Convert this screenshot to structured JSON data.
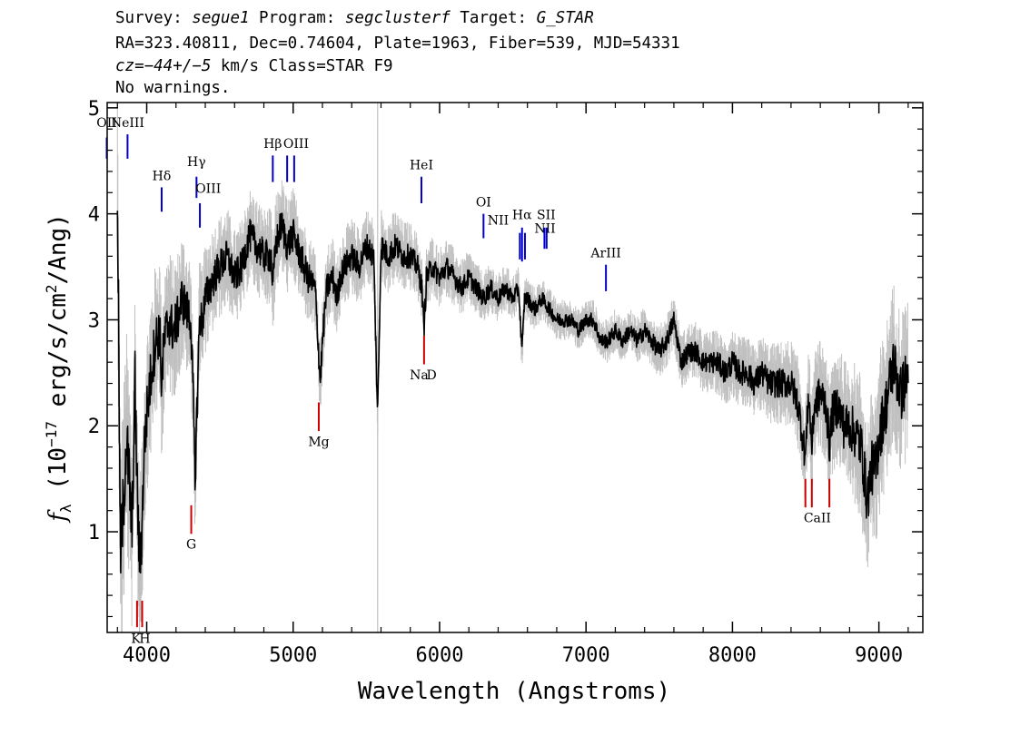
{
  "header": {
    "line1": [
      {
        "text": "Survey: ",
        "italic": false
      },
      {
        "text": "segue1",
        "italic": true
      },
      {
        "text": " Program: ",
        "italic": false
      },
      {
        "text": "segclusterf",
        "italic": true
      },
      {
        "text": " Target: ",
        "italic": false
      },
      {
        "text": "G_STAR",
        "italic": true
      }
    ],
    "line2": "RA=323.40811, Dec=0.74604, Plate=1963, Fiber=539, MJD=54331",
    "line3": [
      {
        "text": "cz=−44+/−5",
        "italic": true
      },
      {
        "text": " km/s Class=STAR F9",
        "italic": false
      }
    ],
    "line4": "No warnings."
  },
  "chart_data": {
    "type": "line",
    "title": "",
    "xlabel": "Wavelength (Angstroms)",
    "ylabel": "f_λ (10^-17 erg/s/cm^2/Ang)",
    "ylabel_parts": {
      "f": "f",
      "sub": "λ",
      "a": " (10",
      "sup1": "−17",
      "b": " erg/s/cm",
      "sup2": "2",
      "c": "/Ang)"
    },
    "xlim": [
      3730,
      9300
    ],
    "ylim": [
      0.05,
      5.05
    ],
    "xticks": [
      4000,
      5000,
      6000,
      7000,
      8000,
      9000
    ],
    "yticks": [
      1,
      2,
      3,
      4,
      5
    ],
    "grid": false,
    "colors": {
      "flux": "#000000",
      "noise_band": "#c0c0c0",
      "emission_marker": "#0000cc",
      "absorption_marker": "#cc0000",
      "sky_line": "#c0c0c0"
    },
    "sky_line_x": 5577,
    "series": [
      {
        "role": "flux",
        "x": [
          3800,
          3820,
          3840,
          3860,
          3880,
          3900,
          3920,
          3935,
          3950,
          3968,
          3980,
          4000,
          4030,
          4060,
          4090,
          4101,
          4120,
          4150,
          4180,
          4210,
          4240,
          4270,
          4300,
          4320,
          4330,
          4340,
          4360,
          4380,
          4400,
          4430,
          4460,
          4500,
          4550,
          4600,
          4650,
          4700,
          4750,
          4800,
          4850,
          4861,
          4880,
          4920,
          4960,
          5000,
          5050,
          5100,
          5150,
          5170,
          5185,
          5200,
          5230,
          5270,
          5300,
          5320,
          5350,
          5400,
          5450,
          5500,
          5550,
          5577,
          5600,
          5650,
          5700,
          5750,
          5800,
          5850,
          5880,
          5893,
          5910,
          5950,
          6000,
          6050,
          6100,
          6150,
          6200,
          6250,
          6300,
          6350,
          6400,
          6450,
          6500,
          6540,
          6563,
          6580,
          6600,
          6650,
          6700,
          6750,
          6800,
          6850,
          6900,
          6950,
          7000,
          7050,
          7100,
          7150,
          7200,
          7250,
          7300,
          7350,
          7400,
          7450,
          7500,
          7550,
          7600,
          7650,
          7700,
          7750,
          7800,
          7850,
          7900,
          7950,
          8000,
          8050,
          8100,
          8150,
          8200,
          8250,
          8300,
          8350,
          8400,
          8450,
          8498,
          8520,
          8542,
          8560,
          8600,
          8640,
          8662,
          8680,
          8720,
          8760,
          8800,
          8850,
          8880,
          8920,
          8950,
          8980,
          9000,
          9050,
          9100,
          9150,
          9200
        ],
        "y": [
          4.3,
          0.8,
          1.2,
          1.9,
          1.5,
          1.0,
          2.4,
          1.4,
          0.7,
          1.0,
          1.7,
          2.1,
          2.5,
          2.8,
          2.9,
          2.4,
          2.8,
          3.0,
          2.9,
          3.0,
          3.2,
          3.1,
          3.0,
          2.2,
          1.4,
          2.0,
          3.0,
          3.0,
          3.2,
          3.3,
          3.4,
          3.5,
          3.6,
          3.4,
          3.5,
          3.8,
          3.7,
          3.6,
          3.6,
          3.3,
          3.7,
          3.9,
          3.7,
          3.8,
          3.6,
          3.4,
          3.3,
          2.8,
          2.4,
          2.8,
          3.3,
          3.4,
          3.2,
          3.4,
          3.5,
          3.6,
          3.5,
          3.7,
          3.6,
          2.1,
          3.7,
          3.6,
          3.7,
          3.6,
          3.6,
          3.5,
          3.3,
          2.9,
          3.4,
          3.5,
          3.4,
          3.5,
          3.4,
          3.3,
          3.4,
          3.3,
          3.2,
          3.3,
          3.2,
          3.3,
          3.2,
          3.3,
          2.7,
          3.2,
          3.2,
          3.1,
          3.2,
          3.1,
          3.0,
          3.0,
          3.0,
          2.9,
          3.0,
          3.0,
          2.8,
          2.8,
          2.9,
          2.8,
          2.9,
          2.8,
          2.9,
          2.8,
          2.7,
          2.8,
          3.0,
          2.6,
          2.7,
          2.7,
          2.6,
          2.6,
          2.6,
          2.5,
          2.6,
          2.5,
          2.5,
          2.4,
          2.5,
          2.4,
          2.4,
          2.4,
          2.4,
          2.2,
          1.7,
          2.3,
          1.8,
          2.2,
          2.3,
          2.2,
          1.8,
          2.1,
          2.2,
          2.0,
          2.0,
          1.9,
          1.8,
          1.3,
          1.6,
          1.6,
          1.9,
          2.2,
          2.6,
          2.3,
          2.5
        ]
      },
      {
        "role": "noise_band",
        "x": [
          3800,
          4000,
          4200,
          4400,
          4600,
          4800,
          5000,
          5200,
          5400,
          5600,
          5800,
          6000,
          6200,
          6400,
          6600,
          6800,
          7000,
          7200,
          7400,
          7600,
          7800,
          8000,
          8200,
          8400,
          8600,
          8800,
          9000,
          9200
        ],
        "half_width": [
          0.9,
          0.6,
          0.5,
          0.4,
          0.35,
          0.35,
          0.35,
          0.3,
          0.28,
          0.28,
          0.25,
          0.22,
          0.2,
          0.18,
          0.16,
          0.15,
          0.15,
          0.16,
          0.18,
          0.2,
          0.22,
          0.25,
          0.28,
          0.32,
          0.4,
          0.5,
          0.6,
          0.6
        ]
      }
    ],
    "line_markers": [
      {
        "label": "OII",
        "x": 3727,
        "kind": "emission",
        "y_top": 4.72,
        "y_bot": 4.52
      },
      {
        "label": "NeIII",
        "x": 3869,
        "kind": "emission",
        "y_top": 4.75,
        "y_bot": 4.52
      },
      {
        "label": "Hδ",
        "x": 4102,
        "kind": "emission",
        "y_top": 4.25,
        "y_bot": 4.02
      },
      {
        "label": "Hγ",
        "x": 4340,
        "kind": "emission",
        "y_top": 4.35,
        "y_bot": 4.15
      },
      {
        "label": "OIII",
        "x": 4363,
        "kind": "emission",
        "y_top": 4.1,
        "y_bot": 3.87
      },
      {
        "label": "Hβ",
        "x": 4861,
        "kind": "emission",
        "y_top": 4.55,
        "y_bot": 4.3
      },
      {
        "label": "OIII",
        "x": 4959,
        "kind": "emission",
        "y_top": 4.55,
        "y_bot": 4.3
      },
      {
        "label": "OIII",
        "x": 5007,
        "kind": "emission",
        "y_top": 4.55,
        "y_bot": 4.3
      },
      {
        "label": "HeI",
        "x": 5876,
        "kind": "emission",
        "y_top": 4.35,
        "y_bot": 4.1
      },
      {
        "label": "OI",
        "x": 6300,
        "kind": "emission",
        "y_top": 4.0,
        "y_bot": 3.77
      },
      {
        "label": "NII",
        "x": 6548,
        "kind": "emission",
        "y_top": 3.82,
        "y_bot": 3.57
      },
      {
        "label": "Hα",
        "x": 6563,
        "kind": "emission",
        "y_top": 3.87,
        "y_bot": 3.55
      },
      {
        "label": "NII",
        "x": 6583,
        "kind": "emission",
        "y_top": 3.82,
        "y_bot": 3.57
      },
      {
        "label": "SII",
        "x": 6716,
        "kind": "emission",
        "y_top": 3.87,
        "y_bot": 3.67
      },
      {
        "label": "SII",
        "x": 6731,
        "kind": "emission",
        "y_top": 3.87,
        "y_bot": 3.67
      },
      {
        "label": "ArIII",
        "x": 7136,
        "kind": "emission",
        "y_top": 3.52,
        "y_bot": 3.27
      },
      {
        "label": "K",
        "x": 3934,
        "kind": "absorption",
        "y_top": 0.35,
        "y_bot": 0.1
      },
      {
        "label": "H",
        "x": 3969,
        "kind": "absorption",
        "y_top": 0.35,
        "y_bot": 0.1
      },
      {
        "label": "G",
        "x": 4304,
        "kind": "absorption",
        "y_top": 1.25,
        "y_bot": 0.98
      },
      {
        "label": "Mg",
        "x": 5175,
        "kind": "absorption",
        "y_top": 2.22,
        "y_bot": 1.95
      },
      {
        "label": "Na",
        "x": 5894,
        "kind": "absorption",
        "y_top": 2.85,
        "y_bot": 2.58
      },
      {
        "label": "CaII",
        "x": 8498,
        "kind": "absorption",
        "y_top": 1.5,
        "y_bot": 1.23
      },
      {
        "label": "CaII",
        "x": 8542,
        "kind": "absorption",
        "y_top": 1.5,
        "y_bot": 1.23
      },
      {
        "label": "CaII",
        "x": 8662,
        "kind": "absorption",
        "y_top": 1.5,
        "y_bot": 1.23
      }
    ],
    "line_labels": [
      {
        "text": "OII",
        "x": 3727,
        "y": 4.82
      },
      {
        "text": "NeIII",
        "x": 3869,
        "y": 4.82
      },
      {
        "text": "Hδ",
        "x": 4102,
        "y": 4.32
      },
      {
        "text": "Hγ",
        "x": 4340,
        "y": 4.45
      },
      {
        "text": "OIII",
        "x": 4420,
        "y": 4.2
      },
      {
        "text": "Hβ",
        "x": 4861,
        "y": 4.62
      },
      {
        "text": "OIII",
        "x": 5020,
        "y": 4.62
      },
      {
        "text": "HeI",
        "x": 5876,
        "y": 4.42
      },
      {
        "text": "OI",
        "x": 6300,
        "y": 4.07
      },
      {
        "text": "NII",
        "x": 6400,
        "y": 3.9
      },
      {
        "text": "Hα",
        "x": 6563,
        "y": 3.95
      },
      {
        "text": "SII",
        "x": 6728,
        "y": 3.95
      },
      {
        "text": "NII",
        "x": 6720,
        "y": 3.82
      },
      {
        "text": "ArIII",
        "x": 7136,
        "y": 3.59
      },
      {
        "text": "K",
        "x": 3926,
        "y": -0.05
      },
      {
        "text": "H",
        "x": 3987,
        "y": -0.05
      },
      {
        "text": "G",
        "x": 4304,
        "y": 0.84
      },
      {
        "text": "Mg",
        "x": 5175,
        "y": 1.81
      },
      {
        "text": "Na",
        "x": 5860,
        "y": 2.44
      },
      {
        "text": "D",
        "x": 5945,
        "y": 2.44
      },
      {
        "text": "CaII",
        "x": 8580,
        "y": 1.09
      }
    ]
  }
}
